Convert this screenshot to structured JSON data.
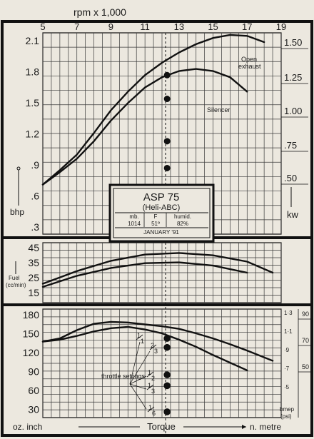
{
  "chart_data": [
    {
      "type": "line",
      "panel": "power",
      "title": "rpm x 1,000",
      "x_ticks": [
        "5",
        "7",
        "9",
        "11",
        "13",
        "15",
        "17",
        "19"
      ],
      "y_ticks": [
        "2.1",
        "1.8",
        "1.5",
        "1.2",
        ".9",
        ".6",
        ".3"
      ],
      "ylabel": "bhp",
      "right_ticks": [
        "1.50",
        "1.25",
        "1.00",
        ".75",
        ".50"
      ],
      "right_label": "kw",
      "xlim": [
        5,
        19
      ],
      "ylim": [
        0.2,
        2.15
      ],
      "series": [
        {
          "name": "Open exhaust",
          "x": [
            5,
            6,
            7,
            8,
            9,
            10,
            11,
            12,
            13,
            14,
            15,
            16,
            17,
            18
          ],
          "y": [
            0.68,
            0.82,
            0.97,
            1.18,
            1.4,
            1.58,
            1.74,
            1.86,
            1.96,
            2.04,
            2.1,
            2.13,
            2.12,
            2.06
          ]
        },
        {
          "name": "Silencer",
          "x": [
            5,
            6,
            7,
            8,
            9,
            10,
            11,
            12,
            13,
            14,
            15,
            16,
            17
          ],
          "y": [
            0.68,
            0.8,
            0.93,
            1.1,
            1.3,
            1.47,
            1.62,
            1.72,
            1.78,
            1.8,
            1.78,
            1.72,
            1.58
          ]
        }
      ],
      "points": {
        "x": 12.3,
        "y": [
          1.74,
          1.51,
          1.1,
          0.84
        ]
      },
      "info_box": {
        "title": "ASP 75",
        "subtitle": "(Heli-ABC)",
        "col1_label": "mb.",
        "col1_value": "1014",
        "col2_label": "F",
        "col2_value": "51º",
        "col3_label": "humid.",
        "col3_value": "82%",
        "date": "JANUARY '91"
      }
    },
    {
      "type": "line",
      "panel": "fuel",
      "y_ticks": [
        "45",
        "35",
        "25",
        "15"
      ],
      "ylabel": "Fuel (cc/min)",
      "ylim": [
        10,
        48
      ],
      "series": [
        {
          "x": [
            5,
            7,
            9,
            11,
            13,
            15,
            17,
            18.5
          ],
          "y": [
            22,
            30,
            36.5,
            40.5,
            41.5,
            40,
            36,
            29
          ]
        },
        {
          "x": [
            5,
            7,
            9,
            11,
            13,
            15,
            17
          ],
          "y": [
            20,
            27,
            32,
            35,
            35.5,
            33.5,
            29
          ]
        }
      ]
    },
    {
      "type": "line",
      "panel": "torque",
      "y_ticks": [
        "180",
        "150",
        "120",
        "90",
        "60",
        "30"
      ],
      "ylabel_left": "oz. inch",
      "xlabel": "Torque",
      "ylabel_right": "n. metre",
      "right_ticks_a": [
        "1·3",
        "1·1",
        "·9",
        "·7",
        "·5"
      ],
      "right_ticks_b": [
        "90",
        "70",
        "50"
      ],
      "right_label": "bmep (psi)",
      "ylim": [
        18,
        188
      ],
      "series": [
        {
          "x": [
            5,
            6,
            7,
            8,
            9,
            10,
            11,
            12,
            13,
            14,
            15,
            16,
            17,
            18.5
          ],
          "y": [
            137,
            142,
            155,
            165,
            168,
            167,
            164,
            161,
            157,
            150,
            142,
            133,
            123,
            107
          ]
        },
        {
          "x": [
            5,
            6,
            7,
            8,
            9,
            10,
            11,
            12,
            13,
            14,
            15,
            16,
            17
          ],
          "y": [
            137,
            140,
            146,
            153,
            158,
            160,
            156,
            150,
            140,
            129,
            116,
            104,
            92
          ]
        }
      ],
      "points": {
        "x": 12.3,
        "y": [
          142,
          128,
          85,
          68,
          27
        ]
      },
      "throttle_label": "throttle settings",
      "throttle_marks": [
        {
          "num": "1",
          "den": "1"
        },
        {
          "num": "2",
          "den": "3"
        },
        {
          "num": "1",
          "den": "2"
        },
        {
          "num": "1",
          "den": "3"
        },
        {
          "num": "1",
          "den": "6"
        }
      ]
    }
  ]
}
